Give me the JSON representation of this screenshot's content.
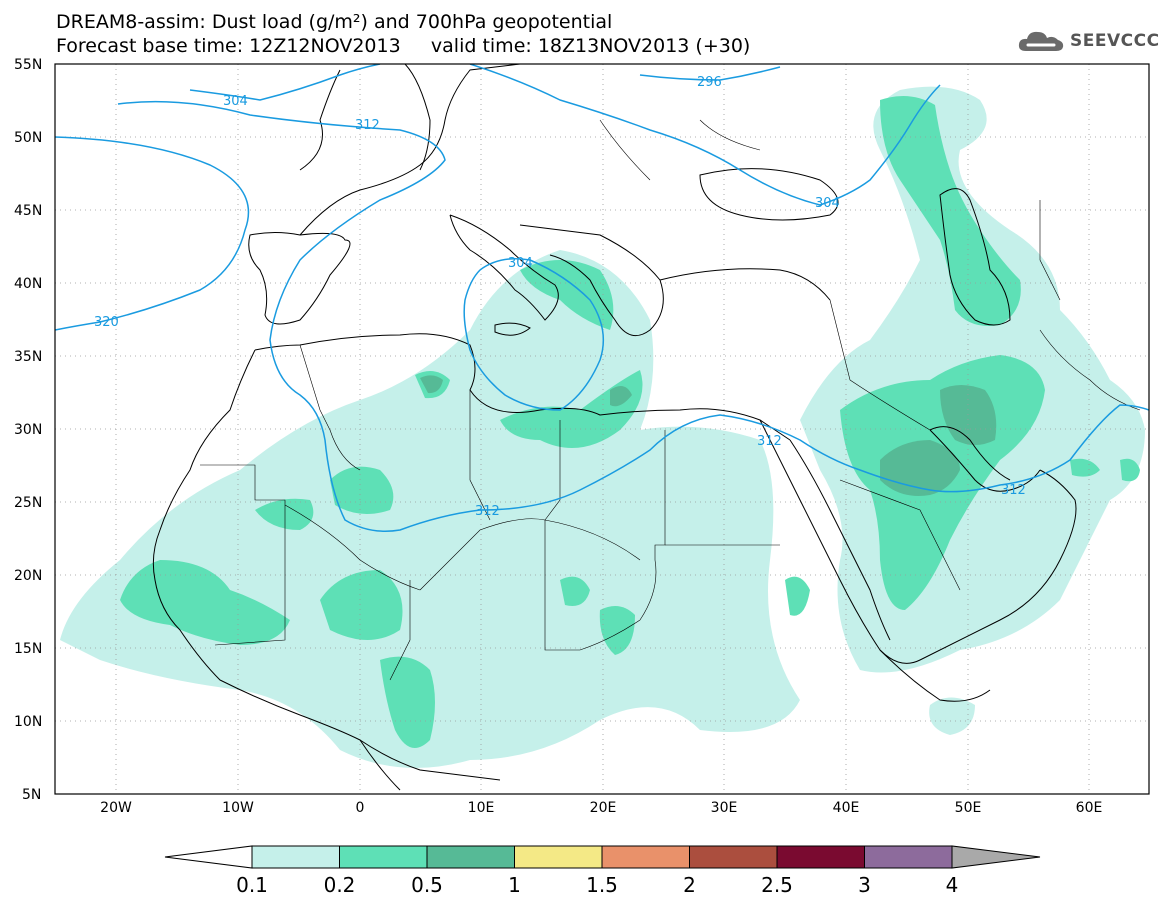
{
  "title": {
    "line1": "DREAM8-assim: Dust load (g/m²) and 700hPa geopotential",
    "line2_base": "Forecast base time: 12Z12NOV2013",
    "line2_valid": "valid time: 18Z13NOV2013 (+30)"
  },
  "logo": {
    "text": "SEEVCCC",
    "icon": "cloud-icon"
  },
  "map": {
    "lat_labels": [
      "55N",
      "50N",
      "45N",
      "40N",
      "35N",
      "30N",
      "25N",
      "20N",
      "15N",
      "10N",
      "5N"
    ],
    "lon_labels": [
      "20W",
      "10W",
      "0",
      "10E",
      "20E",
      "30E",
      "40E",
      "50E",
      "60E"
    ],
    "contour_labels": [
      "304",
      "312",
      "296",
      "304",
      "320",
      "304",
      "312",
      "312",
      "312"
    ],
    "contour_color": "#1a9be0"
  },
  "colorbar": {
    "labels": [
      "0.1",
      "0.2",
      "0.5",
      "1",
      "1.5",
      "2",
      "2.5",
      "3",
      "4"
    ],
    "colors": [
      "#c5f0ea",
      "#5ee0b6",
      "#56ba96",
      "#f4e986",
      "#e9916a",
      "#ab4e3e",
      "#7a0a30",
      "#8d6b9c",
      "#a9a9a9"
    ]
  }
}
